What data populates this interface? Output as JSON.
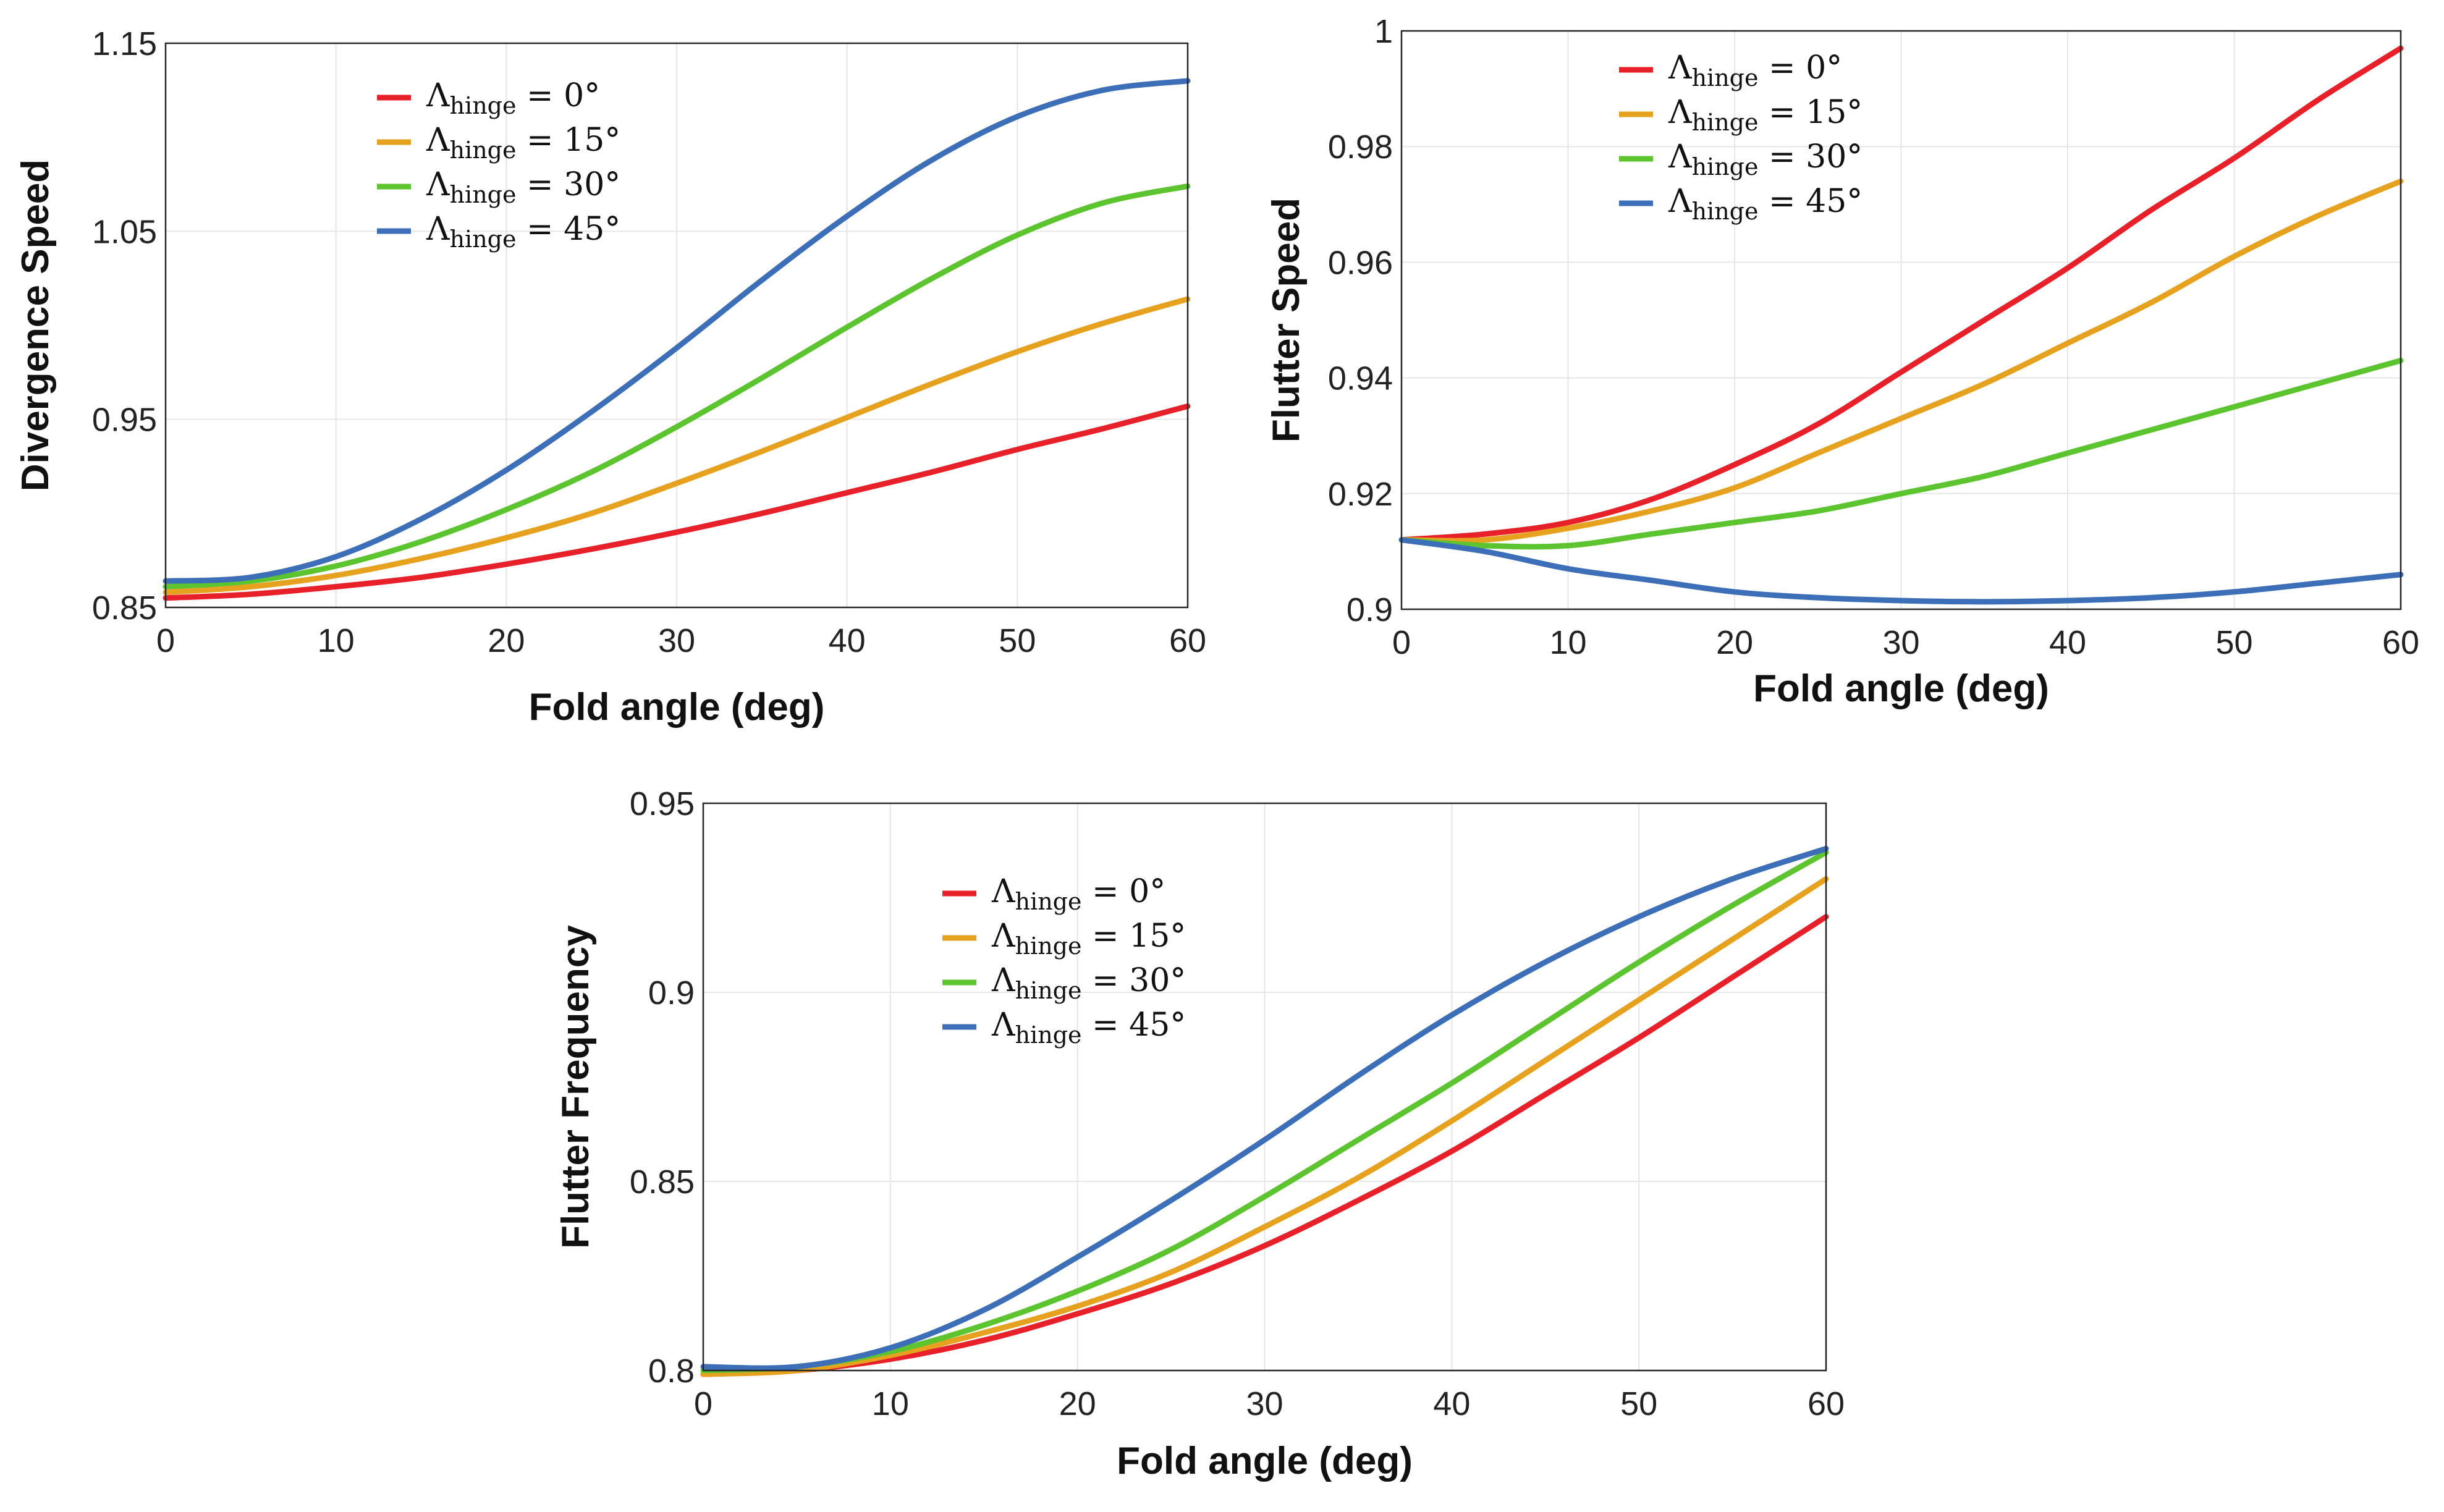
{
  "chart_data": [
    {
      "type": "line",
      "title": "",
      "xlabel": "Fold angle (deg)",
      "ylabel": "Divergence Speed",
      "xlim": [
        0,
        60
      ],
      "ylim": [
        0.85,
        1.15
      ],
      "xticks": [
        0,
        10,
        20,
        30,
        40,
        50,
        60
      ],
      "yticks": [
        "0.85",
        "0.95",
        "1.05",
        "1.15"
      ],
      "grid": true,
      "legend_position": "top-left",
      "x": [
        0,
        5,
        10,
        15,
        20,
        25,
        30,
        35,
        40,
        45,
        50,
        55,
        60
      ],
      "series": [
        {
          "name": "Λ",
          "name_sub": "hinge",
          "name_rest": " = 0°",
          "color": "#e8202a",
          "values": [
            0.855,
            0.857,
            0.861,
            0.866,
            0.873,
            0.881,
            0.89,
            0.9,
            0.911,
            0.922,
            0.934,
            0.945,
            0.957
          ]
        },
        {
          "name": "Λ",
          "name_sub": "hinge",
          "name_rest": " = 15°",
          "color": "#e6a21e",
          "values": [
            0.858,
            0.861,
            0.867,
            0.876,
            0.887,
            0.9,
            0.916,
            0.933,
            0.951,
            0.969,
            0.986,
            1.001,
            1.014
          ]
        },
        {
          "name": "Λ",
          "name_sub": "hinge",
          "name_rest": " = 30°",
          "color": "#5cc42e",
          "values": [
            0.861,
            0.864,
            0.872,
            0.885,
            0.902,
            0.922,
            0.946,
            0.972,
            0.999,
            1.025,
            1.048,
            1.065,
            1.074
          ]
        },
        {
          "name": "Λ",
          "name_sub": "hinge",
          "name_rest": " = 45°",
          "color": "#3d6fb8",
          "values": [
            0.864,
            0.866,
            0.877,
            0.897,
            0.923,
            0.954,
            0.988,
            1.024,
            1.058,
            1.088,
            1.111,
            1.125,
            1.13
          ]
        }
      ]
    },
    {
      "type": "line",
      "title": "",
      "xlabel": "Fold angle (deg)",
      "ylabel": "Flutter Speed",
      "xlim": [
        0,
        60
      ],
      "ylim": [
        0.9,
        1.0
      ],
      "xticks": [
        0,
        10,
        20,
        30,
        40,
        50,
        60
      ],
      "yticks": [
        "0.9",
        "0.92",
        "0.94",
        "0.96",
        "0.98",
        "1"
      ],
      "grid": true,
      "legend_position": "top-left",
      "x": [
        0,
        5,
        10,
        15,
        20,
        25,
        30,
        35,
        40,
        45,
        50,
        55,
        60
      ],
      "series": [
        {
          "name": "Λ",
          "name_sub": "hinge",
          "name_rest": " = 0°",
          "color": "#e8202a",
          "values": [
            0.912,
            0.913,
            0.915,
            0.919,
            0.925,
            0.932,
            0.941,
            0.95,
            0.959,
            0.969,
            0.978,
            0.988,
            0.997
          ]
        },
        {
          "name": "Λ",
          "name_sub": "hinge",
          "name_rest": " = 15°",
          "color": "#e6a21e",
          "values": [
            0.912,
            0.912,
            0.914,
            0.917,
            0.921,
            0.927,
            0.933,
            0.939,
            0.946,
            0.953,
            0.961,
            0.968,
            0.974
          ]
        },
        {
          "name": "Λ",
          "name_sub": "hinge",
          "name_rest": " = 30°",
          "color": "#5cc42e",
          "values": [
            0.912,
            0.911,
            0.911,
            0.913,
            0.915,
            0.917,
            0.92,
            0.923,
            0.927,
            0.931,
            0.935,
            0.939,
            0.943
          ]
        },
        {
          "name": "Λ",
          "name_sub": "hinge",
          "name_rest": " = 45°",
          "color": "#3d6fb8",
          "values": [
            0.912,
            0.91,
            0.907,
            0.905,
            0.903,
            0.902,
            0.9015,
            0.9013,
            0.9015,
            0.902,
            0.903,
            0.9045,
            0.906
          ]
        }
      ]
    },
    {
      "type": "line",
      "title": "",
      "xlabel": "Fold angle (deg)",
      "ylabel": "Flutter Frequency",
      "xlim": [
        0,
        60
      ],
      "ylim": [
        0.8,
        0.95
      ],
      "xticks": [
        0,
        10,
        20,
        30,
        40,
        50,
        60
      ],
      "yticks": [
        "0.8",
        "0.85",
        "0.9",
        "0.95"
      ],
      "grid": true,
      "legend_position": "top-left",
      "x": [
        0,
        5,
        10,
        15,
        20,
        25,
        30,
        35,
        40,
        45,
        50,
        55,
        60
      ],
      "series": [
        {
          "name": "Λ",
          "name_sub": "hinge",
          "name_rest": " = 0°",
          "color": "#e8202a",
          "values": [
            0.799,
            0.8,
            0.803,
            0.808,
            0.815,
            0.823,
            0.833,
            0.845,
            0.858,
            0.873,
            0.888,
            0.904,
            0.92
          ]
        },
        {
          "name": "Λ",
          "name_sub": "hinge",
          "name_rest": " = 15°",
          "color": "#e6a21e",
          "values": [
            0.799,
            0.8,
            0.804,
            0.81,
            0.817,
            0.826,
            0.838,
            0.851,
            0.866,
            0.882,
            0.898,
            0.914,
            0.93
          ]
        },
        {
          "name": "Λ",
          "name_sub": "hinge",
          "name_rest": " = 30°",
          "color": "#5cc42e",
          "values": [
            0.8,
            0.801,
            0.805,
            0.812,
            0.821,
            0.832,
            0.846,
            0.861,
            0.876,
            0.892,
            0.908,
            0.923,
            0.937
          ]
        },
        {
          "name": "Λ",
          "name_sub": "hinge",
          "name_rest": " = 45°",
          "color": "#3d6fb8",
          "values": [
            0.801,
            0.801,
            0.806,
            0.816,
            0.83,
            0.845,
            0.861,
            0.878,
            0.894,
            0.908,
            0.92,
            0.93,
            0.938
          ]
        }
      ]
    }
  ]
}
